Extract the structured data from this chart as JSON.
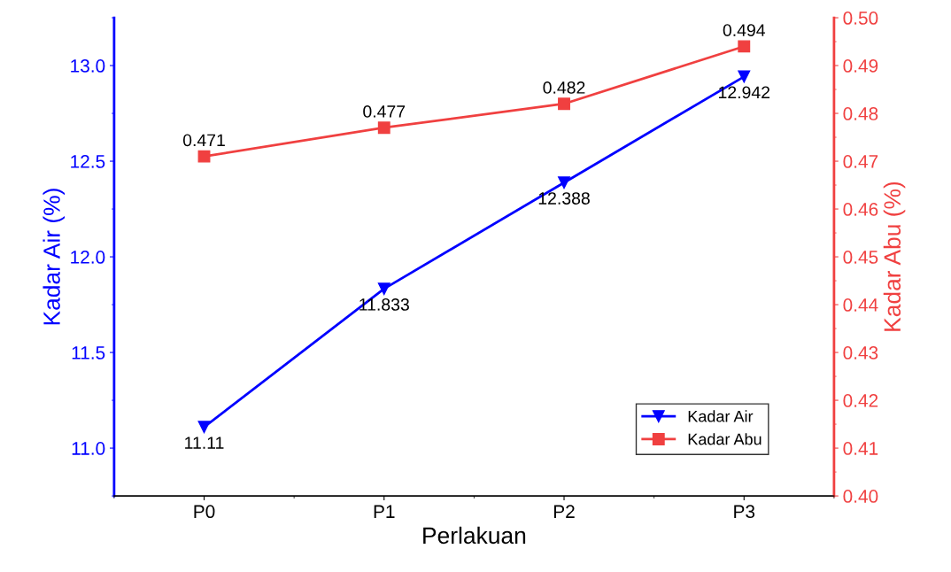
{
  "chart_data": {
    "type": "line",
    "xlabel": "Perlakuan",
    "ylabel": "Kadar Air (%)",
    "y2label": "Kadar Abu (%)",
    "categories": [
      "P0",
      "P1",
      "P2",
      "P3"
    ],
    "series": [
      {
        "name": "Kadar Air",
        "color": "#0000ff",
        "values": [
          11.11,
          11.833,
          12.388,
          12.942
        ],
        "marker": "triangle"
      },
      {
        "name": "Kadar Abu",
        "color": "#f04040",
        "values": [
          0.471,
          0.477,
          0.482,
          0.494
        ],
        "marker": "square",
        "axis": "y2"
      }
    ],
    "ylim": [
      10.75,
      13.25
    ],
    "yticks": [
      {
        "value": 11,
        "label": "11.0"
      },
      11.5,
      {
        "value": 12,
        "label": "12.0"
      },
      12.5,
      {
        "value": 13,
        "label": "13.0"
      }
    ],
    "y2lim": [
      0.4,
      0.5
    ],
    "y2ticks": [
      {
        "value": 0.4,
        "label": "0.40"
      },
      0.41,
      0.42,
      0.43,
      0.44,
      0.45,
      0.46,
      0.47,
      0.48,
      0.49,
      {
        "value": 0.5,
        "label": "0.50"
      }
    ],
    "data_labels": true,
    "legend": "bottom right",
    "grid": false,
    "line_style": "solid"
  }
}
